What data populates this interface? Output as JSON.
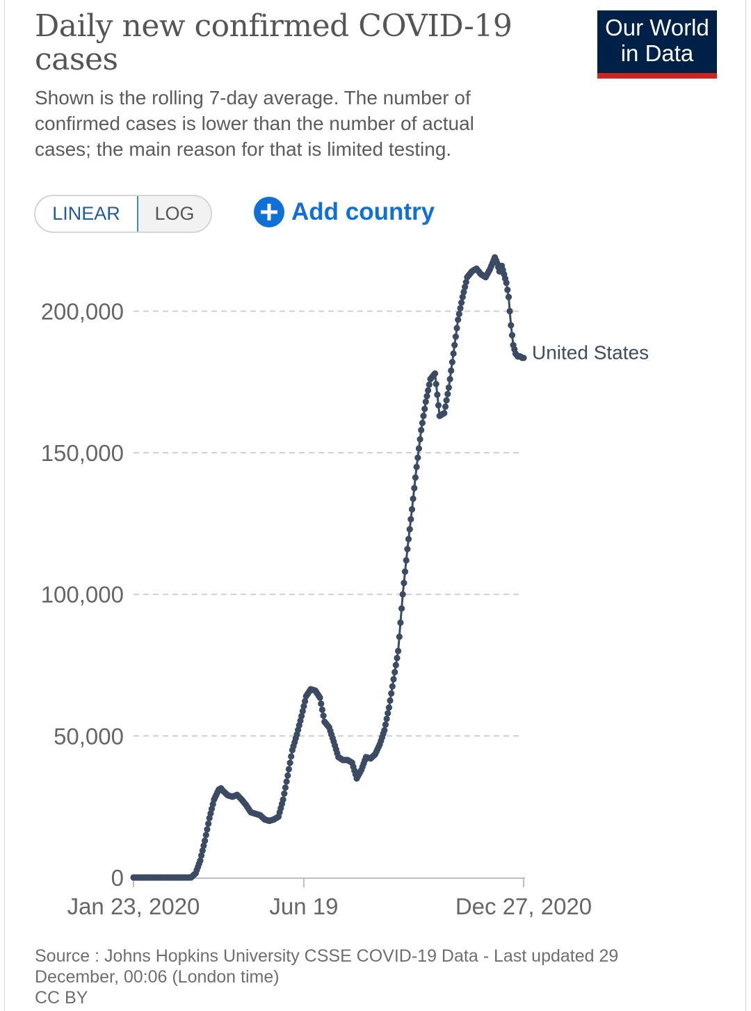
{
  "header": {
    "title": "Daily new confirmed COVID-19 cases",
    "subtitle": "Shown is the rolling 7-day average. The number of confirmed cases is lower than the number of actual cases; the main reason for that is limited testing.",
    "logo_line1": "Our World",
    "logo_line2": "in Data"
  },
  "controls": {
    "linear_label": "LINEAR",
    "log_label": "LOG",
    "add_country_label": "Add country"
  },
  "colors": {
    "series": "#3b4b63",
    "grid": "#cfcfcf",
    "accent_blue": "#1070d6",
    "logo_bg": "#002147",
    "logo_accent": "#ce261e"
  },
  "chart_data": {
    "type": "line",
    "title": "Daily new confirmed COVID-19 cases",
    "xlabel": "",
    "ylabel": "",
    "ylim": [
      0,
      220000
    ],
    "y_ticks": [
      0,
      50000,
      100000,
      150000,
      200000
    ],
    "y_tick_labels": [
      "0",
      "50,000",
      "100,000",
      "150,000",
      "200,000"
    ],
    "grid": "horizontal dashed",
    "x_tick_days": [
      0,
      148,
      339
    ],
    "x_tick_labels": [
      "Jan 23, 2020",
      "Jun 19",
      "Dec 27, 2020"
    ],
    "x_range_days": [
      0,
      339
    ],
    "series": [
      {
        "name": "United States",
        "anchor_days": [
          0,
          50,
          54,
          58,
          62,
          66,
          70,
          74,
          76,
          78,
          82,
          86,
          90,
          94,
          98,
          102,
          106,
          110,
          114,
          118,
          122,
          126,
          130,
          134,
          138,
          142,
          146,
          150,
          154,
          158,
          162,
          166,
          170,
          174,
          178,
          182,
          186,
          190,
          194,
          198,
          202,
          206,
          210,
          214,
          218,
          222,
          226,
          230,
          234,
          238,
          242,
          246,
          250,
          254,
          258,
          262,
          266,
          270,
          274,
          278,
          282,
          286,
          290,
          294,
          298,
          302,
          306,
          310,
          314,
          316,
          318,
          320,
          322,
          324,
          326,
          328,
          330,
          332,
          334,
          336,
          338,
          339
        ],
        "anchor_values": [
          0,
          0,
          1500,
          6000,
          13000,
          21000,
          27500,
          31000,
          31500,
          30500,
          29000,
          28500,
          29200,
          27500,
          25500,
          23000,
          22500,
          22000,
          20500,
          20000,
          20500,
          21500,
          27500,
          36000,
          45000,
          50500,
          57000,
          64000,
          66500,
          66000,
          63500,
          55000,
          53000,
          48000,
          42500,
          41500,
          41500,
          40500,
          35000,
          38000,
          42500,
          42000,
          43500,
          47000,
          52000,
          60000,
          70000,
          80000,
          100000,
          116000,
          130000,
          145000,
          158000,
          168000,
          176000,
          178000,
          163000,
          164000,
          173000,
          185000,
          197000,
          205000,
          212000,
          214000,
          215000,
          213000,
          212000,
          215000,
          219000,
          217000,
          214000,
          216000,
          213000,
          210000,
          205000,
          195000,
          188000,
          185000,
          184000,
          184000,
          183500,
          183500
        ],
        "end_label": "United States"
      }
    ]
  },
  "footer": {
    "source": "Source : Johns Hopkins University CSSE COVID-19 Data - Last updated 29 December, 00:06 (London time)",
    "license": "CC BY"
  }
}
